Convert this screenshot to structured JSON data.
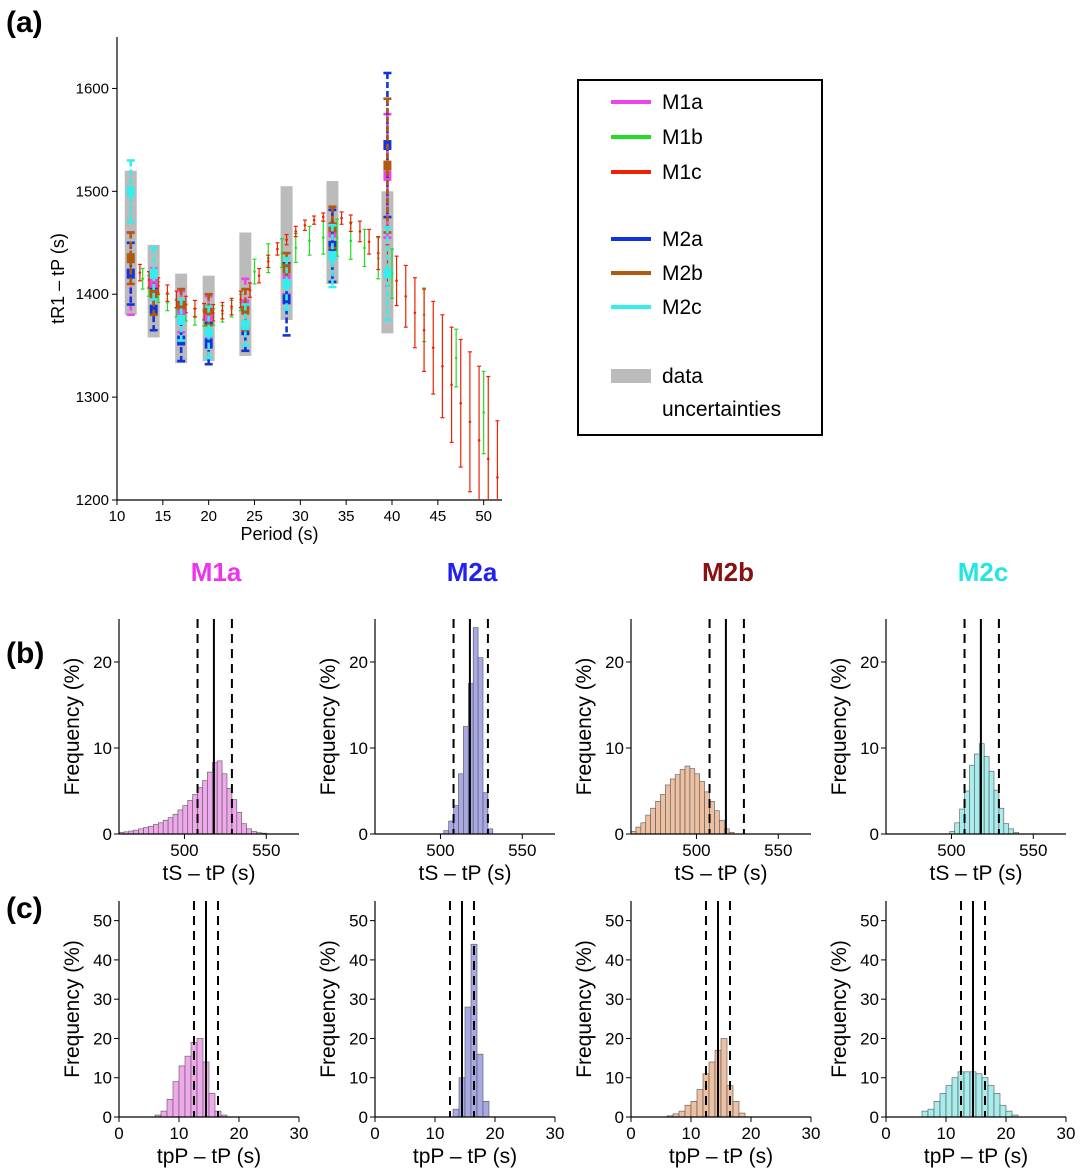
{
  "panel_labels": {
    "a": "(a)",
    "b": "(b)",
    "c": "(c)"
  },
  "chart_data": [
    {
      "id": "a",
      "type": "scatter",
      "xlabel": "Period (s)",
      "ylabel": "tR1 – tP (s)",
      "xlim": [
        10,
        52
      ],
      "ylim": [
        1200,
        1650
      ],
      "xticks": [
        10,
        15,
        20,
        25,
        30,
        35,
        40,
        45,
        50
      ],
      "yticks": [
        1200,
        1300,
        1400,
        1500,
        1600
      ],
      "legend": {
        "placement": "right",
        "entries": [
          {
            "label": "M1a",
            "color": "#ee44ee"
          },
          {
            "label": "M1b",
            "color": "#22dd22"
          },
          {
            "label": "M1c",
            "color": "#ee2200"
          },
          {
            "label": "M2a",
            "color": "#1133dd"
          },
          {
            "label": "M2b",
            "color": "#b05a10"
          },
          {
            "label": "M2c",
            "color": "#33eeee"
          },
          {
            "label": "data",
            "label2": "uncertainties",
            "color": "#bbbbbb"
          }
        ]
      },
      "data_uncertainties": [
        {
          "x": 11.5,
          "low": 1380,
          "high": 1520,
          "color": "#bbbbbb"
        },
        {
          "x": 14.0,
          "low": 1358,
          "high": 1448,
          "color": "#bbbbbb"
        },
        {
          "x": 17.0,
          "low": 1333,
          "high": 1420,
          "color": "#bbbbbb"
        },
        {
          "x": 20.0,
          "low": 1335,
          "high": 1418,
          "color": "#bbbbbb"
        },
        {
          "x": 24.0,
          "low": 1340,
          "high": 1460,
          "color": "#bbbbbb"
        },
        {
          "x": 28.5,
          "low": 1375,
          "high": 1505,
          "color": "#bbbbbb"
        },
        {
          "x": 33.5,
          "low": 1410,
          "high": 1510,
          "color": "#bbbbbb"
        },
        {
          "x": 39.5,
          "low": 1362,
          "high": 1500,
          "color": "#bbbbbb"
        }
      ],
      "series": [
        {
          "name": "M1b",
          "color": "#22dd22",
          "points": [
            {
              "x": 11.5,
              "y": 1425,
              "err": 10
            },
            {
              "x": 12.8,
              "y": 1415,
              "err": 10
            },
            {
              "x": 13.5,
              "y": 1408,
              "err": 10
            },
            {
              "x": 14.5,
              "y": 1402,
              "err": 10
            },
            {
              "x": 15.5,
              "y": 1392,
              "err": 8
            },
            {
              "x": 16.5,
              "y": 1386,
              "err": 8
            },
            {
              "x": 17.5,
              "y": 1382,
              "err": 8
            },
            {
              "x": 18.5,
              "y": 1378,
              "err": 8
            },
            {
              "x": 19.5,
              "y": 1377,
              "err": 8
            },
            {
              "x": 20.5,
              "y": 1378,
              "err": 8
            },
            {
              "x": 21.5,
              "y": 1381,
              "err": 8
            },
            {
              "x": 22.5,
              "y": 1386,
              "err": 8
            },
            {
              "x": 23.5,
              "y": 1392,
              "err": 8
            },
            {
              "x": 25.0,
              "y": 1422,
              "err": 12
            },
            {
              "x": 26.5,
              "y": 1435,
              "err": 14
            },
            {
              "x": 28.0,
              "y": 1440,
              "err": 14
            },
            {
              "x": 29.5,
              "y": 1445,
              "err": 14
            },
            {
              "x": 31.0,
              "y": 1452,
              "err": 14
            },
            {
              "x": 32.5,
              "y": 1455,
              "err": 16
            },
            {
              "x": 34.0,
              "y": 1455,
              "err": 18
            },
            {
              "x": 35.5,
              "y": 1452,
              "err": 18
            },
            {
              "x": 37.0,
              "y": 1445,
              "err": 18
            },
            {
              "x": 38.5,
              "y": 1435,
              "err": 20
            },
            {
              "x": 40.0,
              "y": 1420,
              "err": 24
            },
            {
              "x": 43.5,
              "y": 1380,
              "err": 26
            },
            {
              "x": 47.0,
              "y": 1338,
              "err": 28
            },
            {
              "x": 50.0,
              "y": 1285,
              "err": 40
            }
          ]
        },
        {
          "name": "M1c",
          "color": "#ee2200",
          "points": [
            {
              "x": 11.5,
              "y": 1428,
              "err": 8
            },
            {
              "x": 12.5,
              "y": 1421,
              "err": 8
            },
            {
              "x": 13.5,
              "y": 1414,
              "err": 8
            },
            {
              "x": 14.5,
              "y": 1408,
              "err": 8
            },
            {
              "x": 15.5,
              "y": 1401,
              "err": 8
            },
            {
              "x": 16.5,
              "y": 1395,
              "err": 8
            },
            {
              "x": 17.5,
              "y": 1390,
              "err": 8
            },
            {
              "x": 18.5,
              "y": 1386,
              "err": 8
            },
            {
              "x": 19.5,
              "y": 1383,
              "err": 8
            },
            {
              "x": 20.5,
              "y": 1382,
              "err": 8
            },
            {
              "x": 21.5,
              "y": 1384,
              "err": 8
            },
            {
              "x": 22.5,
              "y": 1388,
              "err": 8
            },
            {
              "x": 23.5,
              "y": 1395,
              "err": 8
            },
            {
              "x": 24.5,
              "y": 1404,
              "err": 7
            },
            {
              "x": 25.5,
              "y": 1418,
              "err": 7
            },
            {
              "x": 26.5,
              "y": 1432,
              "err": 6
            },
            {
              "x": 27.5,
              "y": 1444,
              "err": 6
            },
            {
              "x": 28.5,
              "y": 1453,
              "err": 5
            },
            {
              "x": 29.5,
              "y": 1461,
              "err": 5
            },
            {
              "x": 30.5,
              "y": 1467,
              "err": 5
            },
            {
              "x": 31.5,
              "y": 1472,
              "err": 4
            },
            {
              "x": 32.5,
              "y": 1475,
              "err": 4
            },
            {
              "x": 33.5,
              "y": 1476,
              "err": 5
            },
            {
              "x": 34.5,
              "y": 1474,
              "err": 6
            },
            {
              "x": 35.5,
              "y": 1469,
              "err": 8
            },
            {
              "x": 36.5,
              "y": 1461,
              "err": 10
            },
            {
              "x": 37.5,
              "y": 1451,
              "err": 12
            },
            {
              "x": 38.5,
              "y": 1440,
              "err": 16
            },
            {
              "x": 39.5,
              "y": 1428,
              "err": 20
            },
            {
              "x": 40.5,
              "y": 1413,
              "err": 24
            },
            {
              "x": 41.5,
              "y": 1398,
              "err": 30
            },
            {
              "x": 42.5,
              "y": 1382,
              "err": 34
            },
            {
              "x": 43.5,
              "y": 1365,
              "err": 40
            },
            {
              "x": 44.5,
              "y": 1348,
              "err": 45
            },
            {
              "x": 45.5,
              "y": 1330,
              "err": 50
            },
            {
              "x": 46.5,
              "y": 1312,
              "err": 56
            },
            {
              "x": 47.5,
              "y": 1294,
              "err": 62
            },
            {
              "x": 48.5,
              "y": 1276,
              "err": 68
            },
            {
              "x": 49.5,
              "y": 1258,
              "err": 72
            },
            {
              "x": 50.5,
              "y": 1240,
              "err": 80
            },
            {
              "x": 51.5,
              "y": 1222,
              "err": 55
            }
          ]
        },
        {
          "name": "M1a",
          "color": "#ee44ee",
          "points": [
            {
              "x": 11.5,
              "y": 1420,
              "err": 40
            },
            {
              "x": 14.0,
              "y": 1410,
              "err": 15
            },
            {
              "x": 17.0,
              "y": 1383,
              "err": 20
            },
            {
              "x": 20.0,
              "y": 1378,
              "err": 20
            },
            {
              "x": 24.0,
              "y": 1390,
              "err": 25
            },
            {
              "x": 28.5,
              "y": 1415,
              "err": 15
            },
            {
              "x": 33.5,
              "y": 1460,
              "err": 25
            },
            {
              "x": 39.5,
              "y": 1515,
              "err": 60
            }
          ]
        },
        {
          "name": "M2a",
          "color": "#1133dd",
          "points": [
            {
              "x": 11.5,
              "y": 1420,
              "err": 30
            },
            {
              "x": 14.0,
              "y": 1385,
              "err": 20
            },
            {
              "x": 17.0,
              "y": 1355,
              "err": 20
            },
            {
              "x": 20.0,
              "y": 1352,
              "err": 20
            },
            {
              "x": 24.0,
              "y": 1365,
              "err": 20
            },
            {
              "x": 28.5,
              "y": 1395,
              "err": 35
            },
            {
              "x": 33.5,
              "y": 1447,
              "err": 35
            },
            {
              "x": 39.5,
              "y": 1545,
              "err": 70
            }
          ]
        },
        {
          "name": "M2b",
          "color": "#b05a10",
          "points": [
            {
              "x": 11.5,
              "y": 1435,
              "err": 25
            },
            {
              "x": 14.0,
              "y": 1400,
              "err": 20
            },
            {
              "x": 17.0,
              "y": 1390,
              "err": 15
            },
            {
              "x": 20.0,
              "y": 1385,
              "err": 15
            },
            {
              "x": 24.0,
              "y": 1385,
              "err": 20
            },
            {
              "x": 28.5,
              "y": 1425,
              "err": 15
            },
            {
              "x": 33.5,
              "y": 1465,
              "err": 20
            },
            {
              "x": 39.5,
              "y": 1525,
              "err": 65
            }
          ]
        },
        {
          "name": "M2c",
          "color": "#33eeee",
          "points": [
            {
              "x": 11.5,
              "y": 1500,
              "err": 30
            },
            {
              "x": 14.0,
              "y": 1420,
              "err": 25
            },
            {
              "x": 17.0,
              "y": 1375,
              "err": 20
            },
            {
              "x": 20.0,
              "y": 1363,
              "err": 25
            },
            {
              "x": 24.0,
              "y": 1370,
              "err": 20
            },
            {
              "x": 28.5,
              "y": 1410,
              "err": 25
            },
            {
              "x": 33.5,
              "y": 1437,
              "err": 30
            },
            {
              "x": 39.5,
              "y": 1420,
              "err": 45
            }
          ]
        }
      ]
    },
    {
      "id": "b",
      "type": "bar",
      "row_label": "(b)",
      "xlabel": "tS – tP (s)",
      "ylabel": "Frequency (%)",
      "xlim": [
        460,
        570
      ],
      "ylim": [
        0,
        25
      ],
      "xticks": [
        500,
        550
      ],
      "yticks": [
        0,
        10,
        20
      ],
      "bin_start": 460,
      "bin_width": 3,
      "solid_line": 518,
      "dashed_lines": [
        508,
        529
      ],
      "panels": [
        {
          "title": "M1a",
          "title_color": "#ee33ee",
          "fill": "#f0a8ec",
          "values": [
            0.2,
            0.25,
            0.35,
            0.45,
            0.6,
            0.75,
            0.9,
            1.1,
            1.3,
            1.6,
            1.9,
            2.3,
            2.8,
            3.3,
            3.9,
            4.6,
            5.4,
            6.2,
            7.2,
            8.3,
            8.5,
            7.0,
            5.3,
            4.0,
            2.5,
            1.2,
            0.6,
            0.3,
            0.15,
            0.1
          ]
        },
        {
          "title": "M2a",
          "title_color": "#2222ee",
          "fill": "#a8a8e4",
          "values": [
            0,
            0,
            0,
            0,
            0,
            0,
            0,
            0,
            0,
            0,
            0,
            0,
            0,
            0,
            0.4,
            1.5,
            3.3,
            7.0,
            12.5,
            17.5,
            24.0,
            20.5,
            4.8,
            0.6,
            0,
            0,
            0,
            0,
            0,
            0
          ]
        },
        {
          "title": "M2b",
          "title_color": "#881111",
          "fill": "#ecc0a0",
          "values": [
            0.3,
            0.8,
            1.3,
            2.2,
            3.0,
            3.8,
            4.6,
            5.7,
            6.4,
            6.9,
            7.5,
            7.9,
            7.6,
            7.0,
            6.1,
            4.9,
            3.8,
            2.7,
            1.6,
            0.6,
            0.2,
            0,
            0,
            0,
            0,
            0,
            0,
            0,
            0,
            0
          ]
        },
        {
          "title": "M2c",
          "title_color": "#22e6e6",
          "fill": "#a8ecec",
          "values": [
            0,
            0,
            0,
            0,
            0,
            0,
            0,
            0,
            0,
            0,
            0,
            0,
            0,
            0.3,
            1.3,
            2.9,
            5.0,
            8.0,
            9.3,
            10.5,
            9.0,
            7.3,
            5.1,
            3.0,
            1.2,
            0.6,
            0.2,
            0,
            0,
            0
          ]
        }
      ]
    },
    {
      "id": "c",
      "type": "bar",
      "row_label": "(c)",
      "xlabel": "tpP – tP (s)",
      "ylabel": "Frequency (%)",
      "xlim": [
        0,
        30
      ],
      "ylim": [
        0,
        55
      ],
      "xticks": [
        0,
        10,
        20,
        30
      ],
      "yticks": [
        0,
        10,
        20,
        30,
        40,
        50
      ],
      "bin_start": 6,
      "bin_width": 1,
      "solid_line": 14.5,
      "dashed_lines": [
        12.5,
        16.5
      ],
      "panels": [
        {
          "title": "M1a",
          "fill": "#f0a8ec",
          "values": [
            0.5,
            1.5,
            4.5,
            9.0,
            13.0,
            15.5,
            19.0,
            20.0,
            14.0,
            6.0,
            1.5,
            0.5,
            0,
            0,
            0,
            0
          ]
        },
        {
          "title": "M2a",
          "fill": "#a8a8e4",
          "values": [
            0,
            0,
            0,
            0,
            0,
            0,
            0,
            2.0,
            10.0,
            28.0,
            44.0,
            16.0,
            4.0,
            0,
            0,
            0
          ]
        },
        {
          "title": "M2b",
          "fill": "#ecc0a0",
          "values": [
            0.3,
            0.8,
            1.5,
            3.0,
            4.0,
            7.0,
            11.0,
            14.0,
            17.0,
            20.0,
            8.0,
            4.0,
            1.0,
            0,
            0,
            0
          ]
        },
        {
          "title": "M2c",
          "fill": "#a8ecec",
          "values": [
            1.5,
            2.0,
            4.0,
            6.0,
            8.0,
            10.0,
            11.5,
            11.5,
            11.5,
            11.0,
            10.0,
            8.0,
            6.0,
            3.0,
            1.5,
            0.5
          ]
        }
      ]
    }
  ]
}
